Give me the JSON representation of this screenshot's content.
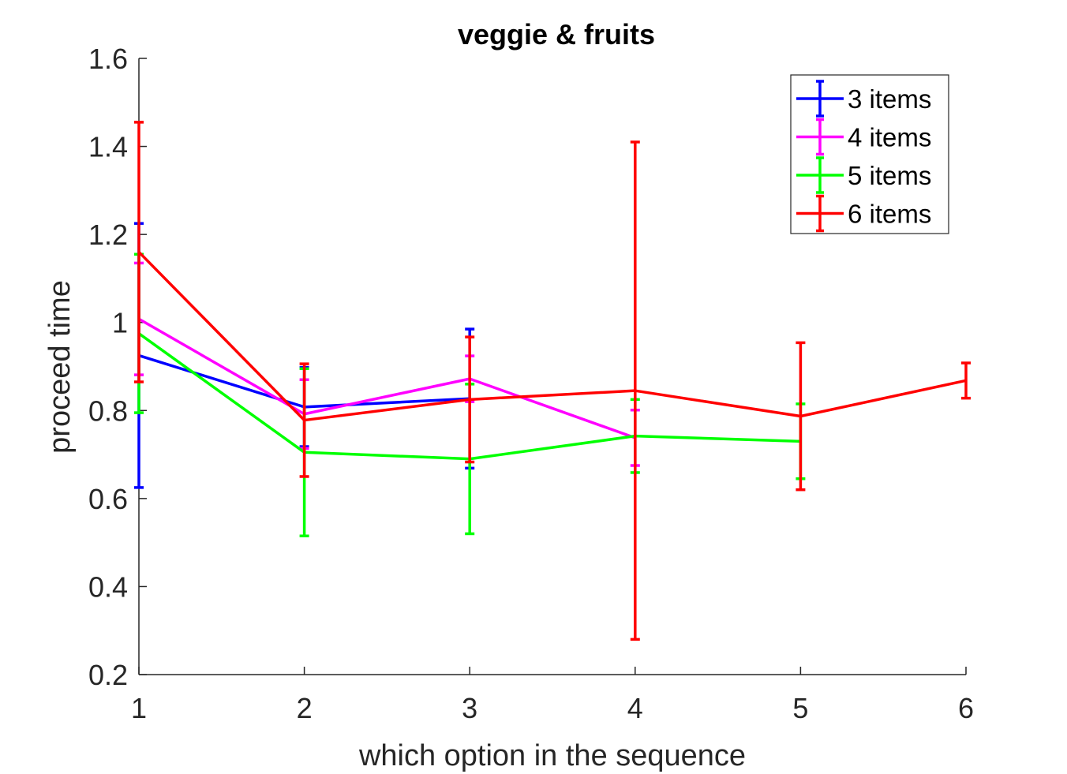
{
  "chart_data": {
    "type": "line",
    "title": "veggie & fruits",
    "xlabel": "which option in the sequence",
    "ylabel": "proceed time",
    "xlim": [
      1,
      6
    ],
    "ylim": [
      0.2,
      1.6
    ],
    "xticks": [
      "1",
      "2",
      "3",
      "4",
      "5",
      "6"
    ],
    "yticks": [
      "0.2",
      "0.4",
      "0.6",
      "0.8",
      "1",
      "1.2",
      "1.4",
      "1.6"
    ],
    "grid": false,
    "legend_position": "top-right",
    "error_bars": true,
    "series": [
      {
        "name": "3 items",
        "color": "#0000ff",
        "x": [
          1,
          2,
          3
        ],
        "y": [
          0.925,
          0.808,
          0.827
        ],
        "err": [
          0.3,
          0.09,
          0.158
        ]
      },
      {
        "name": "4 items",
        "color": "#ff00ff",
        "x": [
          1,
          2,
          3,
          4
        ],
        "y": [
          1.008,
          0.792,
          0.872,
          0.738
        ],
        "err": [
          0.127,
          0.078,
          0.052,
          0.063
        ]
      },
      {
        "name": "5 items",
        "color": "#00ff00",
        "x": [
          1,
          2,
          3,
          4,
          5
        ],
        "y": [
          0.975,
          0.705,
          0.69,
          0.742,
          0.73
        ],
        "err": [
          0.18,
          0.19,
          0.17,
          0.083,
          0.085
        ]
      },
      {
        "name": "6 items",
        "color": "#ff0000",
        "x": [
          1,
          2,
          3,
          4,
          5,
          6
        ],
        "y": [
          1.16,
          0.778,
          0.825,
          0.845,
          0.787,
          0.868
        ],
        "err": [
          0.295,
          0.128,
          0.142,
          0.565,
          0.167,
          0.04
        ]
      }
    ]
  }
}
